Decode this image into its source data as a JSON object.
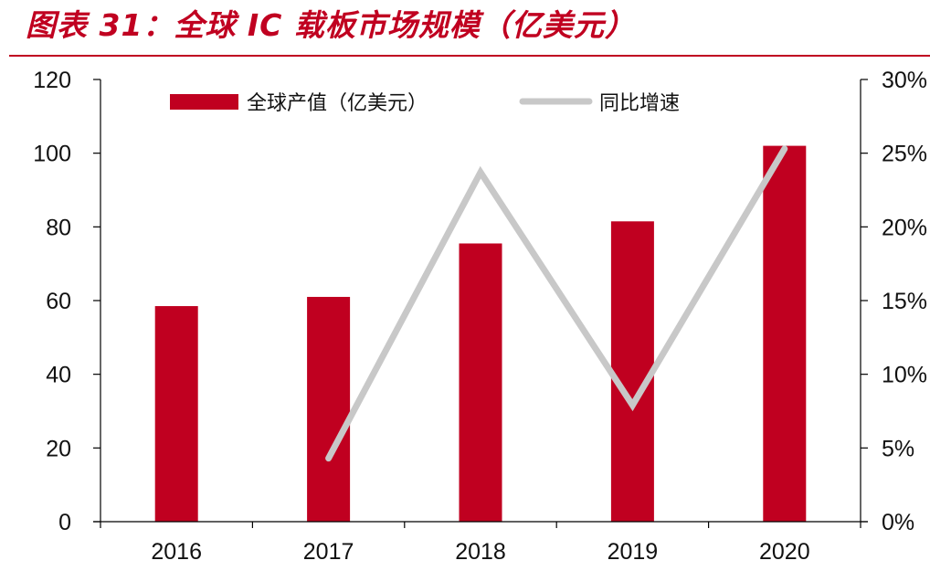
{
  "title": "图表 31：全球 IC 载板市场规模（亿美元）",
  "colors": {
    "bar": "#c00020",
    "line": "#c8c8c8",
    "title": "#c00020"
  },
  "chart_data": {
    "type": "bar",
    "categories": [
      "2016",
      "2017",
      "2018",
      "2019",
      "2020"
    ],
    "series": [
      {
        "name": "全球产值（亿美元）",
        "type": "bar",
        "axis": "left",
        "values": [
          58.5,
          61,
          75.5,
          81.5,
          102
        ]
      },
      {
        "name": "同比增速",
        "type": "line",
        "axis": "right",
        "values": [
          null,
          0.043,
          0.237,
          0.079,
          0.253
        ]
      }
    ],
    "y_left": {
      "min": 0,
      "max": 120,
      "ticks": [
        "0",
        "20",
        "40",
        "60",
        "80",
        "100",
        "120"
      ]
    },
    "y_right": {
      "min": 0,
      "max": 0.3,
      "ticks": [
        "0%",
        "5%",
        "10%",
        "15%",
        "20%",
        "25%",
        "30%"
      ]
    },
    "legend": "top",
    "grid": false
  }
}
